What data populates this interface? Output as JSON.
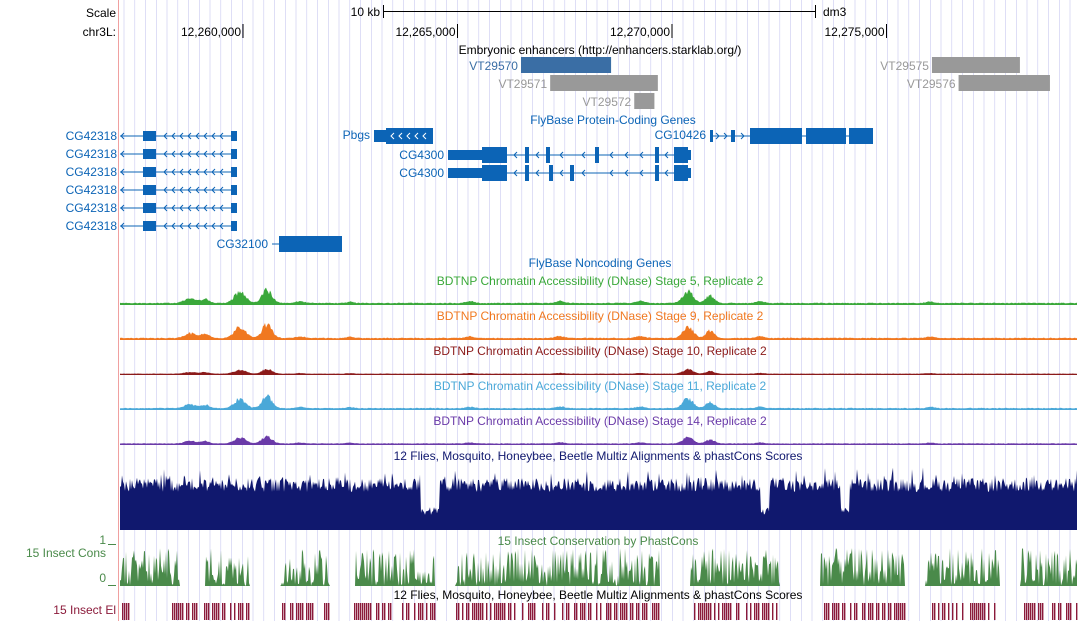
{
  "scale": {
    "label": "Scale",
    "bar_label": "10 kb",
    "assembly": "dm3"
  },
  "ruler": {
    "chrom_label": "chr3L:",
    "ticks": [
      {
        "pos": 12260000,
        "text": "12,260,000"
      },
      {
        "pos": 12265000,
        "text": "12,265,000"
      },
      {
        "pos": 12270000,
        "text": "12,270,000"
      },
      {
        "pos": 12275000,
        "text": "12,275,000"
      }
    ]
  },
  "colors": {
    "gene": "#0c64b6",
    "enhancer_dark": "#3a6ea5",
    "enhancer_grey": "#999999",
    "dnase_stage5": "#3aa83a",
    "dnase_stage9": "#f07820",
    "dnase_stage10": "#8b1a1a",
    "dnase_stage11": "#4aa8d8",
    "dnase_stage14": "#6a3aa8",
    "multiz": "#10186e",
    "phastcons": "#4a8a4a",
    "elements": "#8b1a3a",
    "grid": "#c8c8f0",
    "left_edge": "#f0a0a0"
  },
  "tracks": {
    "enhancers": {
      "title": "Embryonic enhancers (http://enhancers.starklab.org/)",
      "items": [
        {
          "name": "VT29570",
          "start": 12266480,
          "end": 12268580,
          "color": "dark",
          "row": 0
        },
        {
          "name": "VT29571",
          "start": 12267160,
          "end": 12269670,
          "color": "grey",
          "row": 1
        },
        {
          "name": "VT29572",
          "start": 12269120,
          "end": 12269590,
          "color": "grey",
          "row": 2
        },
        {
          "name": "VT29575",
          "start": 12276060,
          "end": 12278110,
          "color": "grey",
          "row": 0
        },
        {
          "name": "VT29576",
          "start": 12276680,
          "end": 12278810,
          "color": "grey",
          "row": 1
        }
      ]
    },
    "protein_genes": {
      "title": "FlyBase Protein-Coding Genes",
      "genes": [
        {
          "name": "CG42318",
          "row": 0
        },
        {
          "name": "CG42318",
          "row": 1
        },
        {
          "name": "CG42318",
          "row": 2
        },
        {
          "name": "CG42318",
          "row": 3
        },
        {
          "name": "CG42318",
          "row": 4
        },
        {
          "name": "CG42318",
          "row": 5
        },
        {
          "name": "CG32100",
          "row": 6
        },
        {
          "name": "Pbgs",
          "row": 0
        },
        {
          "name": "CG4300",
          "row": 1
        },
        {
          "name": "CG4300",
          "row": 2
        },
        {
          "name": "CG10426",
          "row": 0
        }
      ]
    },
    "noncoding_genes": {
      "title": "FlyBase Noncoding Genes"
    },
    "dnase": [
      {
        "key": "dnase_stage5",
        "title": "BDTNP Chromatin Accessibility (DNase) Stage 5, Replicate 2"
      },
      {
        "key": "dnase_stage9",
        "title": "BDTNP Chromatin Accessibility (DNase) Stage 9, Replicate 2"
      },
      {
        "key": "dnase_stage10",
        "title": "BDTNP Chromatin Accessibility (DNase) Stage 10, Replicate 2"
      },
      {
        "key": "dnase_stage11",
        "title": "BDTNP Chromatin Accessibility (DNase) Stage 11, Replicate 2"
      },
      {
        "key": "dnase_stage14",
        "title": "BDTNP Chromatin Accessibility (DNase) Stage 14, Replicate 2"
      }
    ],
    "multiz": {
      "title": "12 Flies, Mosquito, Honeybee, Beetle Multiz Alignments & phastCons Scores"
    },
    "phastcons": {
      "title": "15 Insect Conservation by PhastCons",
      "side_label": "15 Insect Cons",
      "axis_max": "1",
      "axis_min": "0"
    },
    "elements": {
      "title": "12 Flies, Mosquito, Honeybee, Beetle Multiz Alignments & phastCons Scores",
      "side_label": "15 Insect El"
    }
  }
}
